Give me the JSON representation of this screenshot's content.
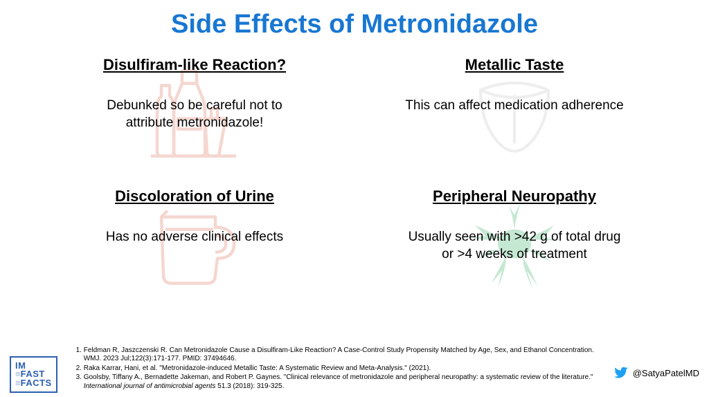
{
  "title": {
    "text": "Side Effects of Metronidazole",
    "color": "#1877d2",
    "fontsize": 38
  },
  "cards": [
    {
      "heading": "Disulfiram-like Reaction?",
      "body": "Debunked so be careful not to attribute metronidazole!",
      "icon": "alcohol-bottles-icon",
      "icon_color": "#f5d7d0"
    },
    {
      "heading": "Metallic Taste",
      "body": "This can affect medication adherence",
      "icon": "tongue-icon",
      "icon_color": "#eeeeee"
    },
    {
      "heading": "Discoloration of Urine",
      "body": "Has no adverse clinical effects",
      "icon": "pitcher-icon",
      "icon_color": "#f5d7d0"
    },
    {
      "heading": "Peripheral Neuropathy",
      "body": "Usually seen with >42 g of total drug or >4 weeks of treatment",
      "icon": "neuron-icon",
      "icon_color": "#c5e8d3"
    }
  ],
  "heading_fontsize": 22,
  "body_fontsize": 19,
  "logo": {
    "line1": "IM",
    "line2": "FAST",
    "line3": "FACTS",
    "border_color": "#2b5fb0"
  },
  "references": [
    "Feldman R, Jaszczenski R. Can Metronidazole Cause a Disulfiram-Like Reaction? A Case-Control Study Propensity Matched by Age, Sex, and Ethanol Concentration. WMJ. 2023 Jul;122(3):171-177. PMID: 37494646.",
    "Raka Karrar, Hani, et al. \"Metronidazole-induced Metallic Taste: A Systematic Review and Meta-Analysis.\" (2021).",
    "Goolsby, Tiffany A., Bernadette Jakeman, and Robert P. Gaynes. \"Clinical relevance of metronidazole and peripheral neuropathy: a systematic review of the literature.\" <em>International journal of antimicrobial agents</em> 51.3 (2018): 319-325."
  ],
  "ref_fontsize": 10,
  "handle": {
    "text": "@SatyaPatelMD",
    "icon_color": "#1da1f2"
  }
}
